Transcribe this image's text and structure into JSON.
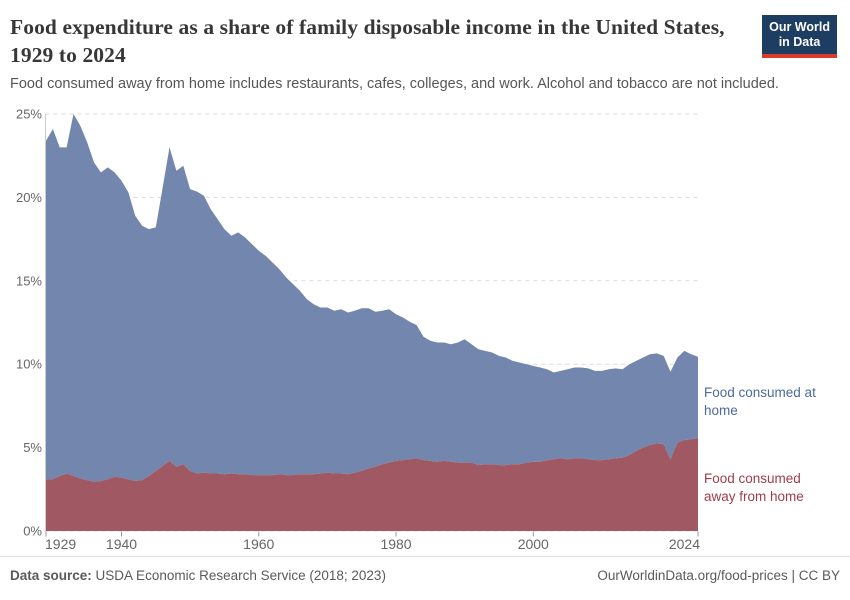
{
  "header": {
    "title": "Food expenditure as a share of family disposable income in the United States, 1929 to 2024",
    "subtitle": "Food consumed away from home includes restaurants, cafes, colleges, and work. Alcohol and tobacco are not included.",
    "logo": {
      "line1": "Our World",
      "line2": "in Data",
      "bg_color": "#1d3d63",
      "bar_color": "#d93b2f"
    }
  },
  "chart_data": {
    "type": "area",
    "stacked": true,
    "title": "Food expenditure as a share of family disposable income in the United States, 1929 to 2024",
    "xlabel": "",
    "ylabel": "",
    "ylim": [
      0,
      25
    ],
    "grid": "dashed-horizontal",
    "legend_position": "right-of-plot",
    "yticks": [
      {
        "v": 0,
        "label": "0%"
      },
      {
        "v": 5,
        "label": "5%"
      },
      {
        "v": 10,
        "label": "10%"
      },
      {
        "v": 15,
        "label": "15%"
      },
      {
        "v": 20,
        "label": "20%"
      },
      {
        "v": 25,
        "label": "25%"
      }
    ],
    "xticks": [
      1929,
      1940,
      1960,
      1980,
      2000,
      2024
    ],
    "years": [
      1929,
      1930,
      1931,
      1932,
      1933,
      1934,
      1935,
      1936,
      1937,
      1938,
      1939,
      1940,
      1941,
      1942,
      1943,
      1944,
      1945,
      1946,
      1947,
      1948,
      1949,
      1950,
      1951,
      1952,
      1953,
      1954,
      1955,
      1956,
      1957,
      1958,
      1959,
      1960,
      1961,
      1962,
      1963,
      1964,
      1965,
      1966,
      1967,
      1968,
      1969,
      1970,
      1971,
      1972,
      1973,
      1974,
      1975,
      1976,
      1977,
      1978,
      1979,
      1980,
      1981,
      1982,
      1983,
      1984,
      1985,
      1986,
      1987,
      1988,
      1989,
      1990,
      1991,
      1992,
      1993,
      1994,
      1995,
      1996,
      1997,
      1998,
      1999,
      2000,
      2001,
      2002,
      2003,
      2004,
      2005,
      2006,
      2007,
      2008,
      2009,
      2010,
      2011,
      2012,
      2013,
      2014,
      2015,
      2016,
      2017,
      2018,
      2019,
      2020,
      2021,
      2022,
      2023,
      2024
    ],
    "series": [
      {
        "name": "Food consumed away from home",
        "color": "#a05862",
        "label_color": "#9c3e4a",
        "values": [
          3.1,
          3.1,
          3.3,
          3.45,
          3.3,
          3.15,
          3.05,
          2.95,
          3.0,
          3.1,
          3.25,
          3.2,
          3.1,
          3.0,
          3.05,
          3.3,
          3.6,
          3.9,
          4.2,
          3.85,
          4.0,
          3.6,
          3.45,
          3.5,
          3.45,
          3.45,
          3.4,
          3.45,
          3.4,
          3.4,
          3.35,
          3.35,
          3.35,
          3.35,
          3.4,
          3.35,
          3.35,
          3.4,
          3.4,
          3.4,
          3.45,
          3.5,
          3.45,
          3.45,
          3.4,
          3.5,
          3.6,
          3.75,
          3.85,
          4.0,
          4.1,
          4.2,
          4.25,
          4.3,
          4.35,
          4.25,
          4.2,
          4.15,
          4.2,
          4.15,
          4.1,
          4.1,
          4.1,
          3.95,
          4.0,
          4.0,
          3.95,
          3.95,
          4.0,
          4.0,
          4.1,
          4.15,
          4.15,
          4.25,
          4.3,
          4.35,
          4.3,
          4.35,
          4.35,
          4.3,
          4.25,
          4.25,
          4.3,
          4.35,
          4.4,
          4.55,
          4.8,
          5.0,
          5.15,
          5.25,
          5.2,
          4.3,
          5.3,
          5.45,
          5.5,
          5.55
        ]
      },
      {
        "name": "Food consumed at home",
        "color": "#7286ae",
        "label_color": "#4c6a9c",
        "values": [
          20.3,
          21.0,
          19.7,
          19.55,
          21.7,
          21.15,
          20.25,
          19.15,
          18.5,
          18.7,
          18.25,
          17.8,
          17.2,
          15.9,
          15.25,
          14.8,
          14.6,
          16.7,
          18.8,
          17.75,
          17.9,
          16.9,
          16.9,
          16.6,
          15.85,
          15.25,
          14.7,
          14.25,
          14.5,
          14.2,
          13.85,
          13.45,
          13.15,
          12.75,
          12.3,
          11.85,
          11.45,
          11.0,
          10.5,
          10.2,
          9.95,
          9.9,
          9.75,
          9.85,
          9.7,
          9.7,
          9.75,
          9.6,
          9.3,
          9.2,
          9.2,
          8.8,
          8.55,
          8.25,
          8.0,
          7.4,
          7.2,
          7.15,
          7.1,
          7.05,
          7.2,
          7.4,
          7.1,
          6.95,
          6.8,
          6.7,
          6.55,
          6.45,
          6.2,
          6.1,
          5.9,
          5.75,
          5.65,
          5.45,
          5.2,
          5.25,
          5.4,
          5.45,
          5.45,
          5.45,
          5.35,
          5.35,
          5.4,
          5.4,
          5.3,
          5.45,
          5.4,
          5.4,
          5.45,
          5.4,
          5.3,
          5.25,
          5.1,
          5.35,
          5.1,
          4.9
        ]
      }
    ]
  },
  "footer": {
    "datasource_label": "Data source:",
    "datasource_text": "USDA Economic Research Service (2018; 2023)",
    "license_text": "OurWorldinData.org/food-prices | CC BY"
  }
}
